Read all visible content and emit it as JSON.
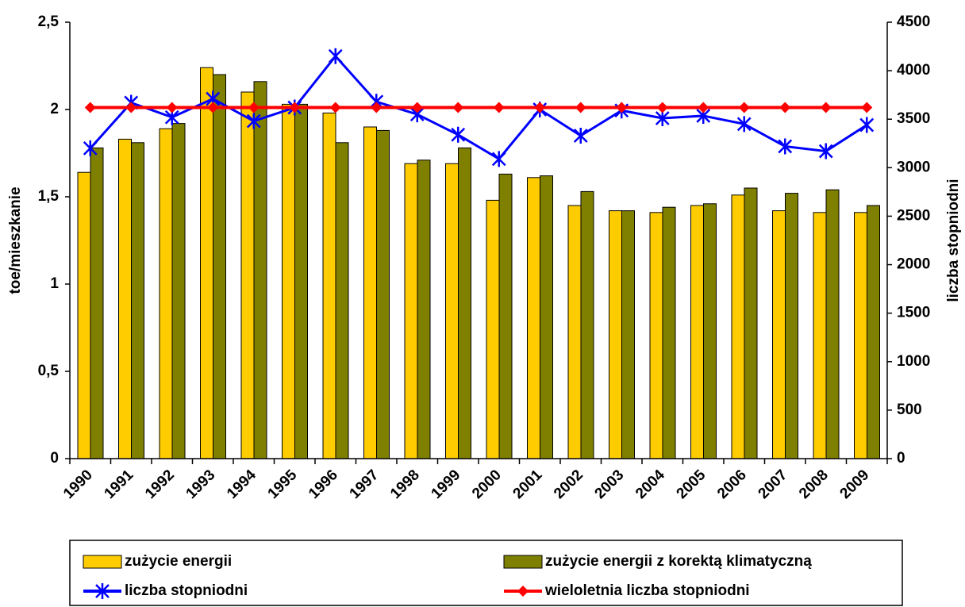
{
  "chart_data": {
    "type": "bar",
    "categories": [
      "1990",
      "1991",
      "1992",
      "1993",
      "1994",
      "1995",
      "1996",
      "1997",
      "1998",
      "1999",
      "2000",
      "2001",
      "2002",
      "2003",
      "2004",
      "2005",
      "2006",
      "2007",
      "2008",
      "2009"
    ],
    "ylabel": "toe/mieszkanie",
    "y2label": "liczba stopniodni",
    "ylim": [
      0,
      2.5
    ],
    "yticks": [
      0,
      {
        "value": 0.5,
        "label": "0,5"
      },
      1,
      {
        "value": 1.5,
        "label": "1,5"
      },
      2,
      {
        "value": 2.5,
        "label": "2,5"
      }
    ],
    "y2lim": [
      0,
      4500
    ],
    "y2ticks": [
      0,
      500,
      1000,
      1500,
      2000,
      2500,
      3000,
      3500,
      4000,
      4500
    ],
    "series": [
      {
        "name": "zużycie energii",
        "color": "#FFCC00",
        "type": "bar",
        "values": [
          1.64,
          1.83,
          1.89,
          2.24,
          2.1,
          2.03,
          1.98,
          1.9,
          1.69,
          1.69,
          1.48,
          1.61,
          1.45,
          1.42,
          1.41,
          1.45,
          1.51,
          1.42,
          1.41,
          1.41
        ]
      },
      {
        "name": "zużycie energii z korektą klimatyczną",
        "color": "#808000",
        "type": "bar",
        "values": [
          1.78,
          1.81,
          1.92,
          2.2,
          2.16,
          2.03,
          1.81,
          1.88,
          1.71,
          1.78,
          1.63,
          1.62,
          1.53,
          1.42,
          1.44,
          1.46,
          1.55,
          1.52,
          1.54,
          1.45
        ]
      },
      {
        "name": "liczba stopniodni",
        "color": "#0000FF",
        "type": "line",
        "axis": "y2",
        "marker": "star",
        "values": [
          3200,
          3670,
          3520,
          3710,
          3480,
          3620,
          4150,
          3680,
          3550,
          3340,
          3090,
          3600,
          3330,
          3590,
          3510,
          3535,
          3450,
          3220,
          3170,
          3440
        ]
      },
      {
        "name": "wieloletnia liczba stopniodni",
        "color": "#FF0000",
        "type": "line",
        "axis": "y2",
        "marker": "diamond",
        "values": [
          3620,
          3620,
          3620,
          3620,
          3620,
          3620,
          3620,
          3620,
          3620,
          3620,
          3620,
          3620,
          3620,
          3620,
          3620,
          3620,
          3620,
          3620,
          3620,
          3620
        ]
      }
    ]
  }
}
